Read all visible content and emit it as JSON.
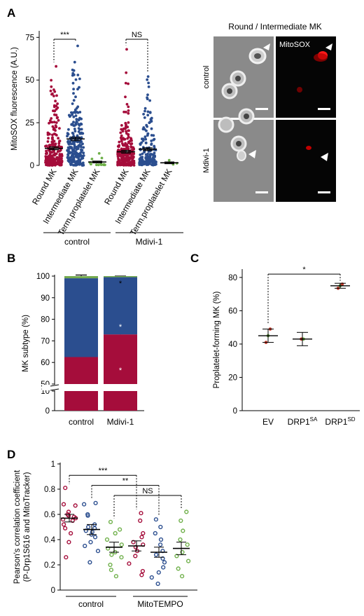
{
  "colors": {
    "round": "#a50d3b",
    "intermediate": "#2b4e8f",
    "terminal": "#6fb04a",
    "bar_green": "#74aa4e",
    "dot_red": "#c0392b",
    "dot_green": "#6fb04a",
    "micro_bg": "#3a3a3a"
  },
  "panels": {
    "A": {
      "label": "A",
      "micro_title": "Round / Intermediate MK",
      "micro_channel": "MitoSOX",
      "micro_rows": [
        "control",
        "Mdivi-1"
      ]
    },
    "B": {
      "label": "B"
    },
    "C": {
      "label": "C"
    },
    "D": {
      "label": "D"
    }
  },
  "chart_data": [
    {
      "id": "A",
      "type": "scatter",
      "ylabel": "MitoSOX fluorescence (A.U.)",
      "yticks": [
        0,
        25,
        50,
        75
      ],
      "ylim": [
        0,
        78
      ],
      "categories": [
        "Round MK",
        "Intermediate MK",
        "Term.proplatelet MK",
        "Round MK",
        "Intermediate MK",
        "Term.proplatelet MK"
      ],
      "groups": [
        "control",
        "Mdivi-1"
      ],
      "series": [
        {
          "category": "Round MK",
          "group": "control",
          "color_key": "round",
          "mean": 10,
          "sem": 0.8,
          "n": 230,
          "max": 58
        },
        {
          "category": "Intermediate MK",
          "group": "control",
          "color_key": "intermediate",
          "mean": 15.5,
          "sem": 1.0,
          "n": 230,
          "max": 70
        },
        {
          "category": "Term.proplatelet MK",
          "group": "control",
          "color_key": "terminal",
          "mean": 2,
          "sem": 0.5,
          "n": 14,
          "max": 7
        },
        {
          "category": "Round MK",
          "group": "Mdivi-1",
          "color_key": "round",
          "mean": 8,
          "sem": 0.8,
          "n": 230,
          "max": 68
        },
        {
          "category": "Intermediate MK",
          "group": "Mdivi-1",
          "color_key": "intermediate",
          "mean": 9.5,
          "sem": 0.8,
          "n": 170,
          "max": 52
        },
        {
          "category": "Term.proplatelet MK",
          "group": "Mdivi-1",
          "color_key": "terminal",
          "mean": 1.5,
          "sem": 0.5,
          "n": 3,
          "max": 3
        }
      ],
      "comparisons": [
        {
          "from": 0,
          "to": 1,
          "label": "***"
        },
        {
          "from": 3,
          "to": 4,
          "label": "NS"
        }
      ]
    },
    {
      "id": "B",
      "type": "bar",
      "stacked": true,
      "ylabel": "MK subtype (%)",
      "yticks_upper": [
        50,
        60,
        70,
        80,
        90,
        100
      ],
      "yticks_lower": [
        0,
        10
      ],
      "categories": [
        "control",
        "Mdivi-1"
      ],
      "series": [
        {
          "name": "",
          "color_key": "round",
          "values": [
            62.5,
            73
          ],
          "err": [
            3,
            0.3
          ]
        },
        {
          "name": "",
          "color_key": "intermediate",
          "values": [
            36.5,
            26.5
          ],
          "err": [
            1.5,
            0.5
          ]
        },
        {
          "name": "",
          "color_key": "bar_green",
          "values": [
            1,
            0.5
          ],
          "err": [
            0,
            0
          ]
        }
      ],
      "annotations": [
        "*",
        "*",
        "*"
      ]
    },
    {
      "id": "C",
      "type": "scatter",
      "ylabel": "Proplatelet-forming MK (%)",
      "yticks": [
        0,
        20,
        40,
        60,
        80
      ],
      "ylim": [
        0,
        85
      ],
      "categories": [
        {
          "base": "EV",
          "sup": ""
        },
        {
          "base": "DRP1",
          "sup": "SA"
        },
        {
          "base": "DRP1",
          "sup": "SD"
        }
      ],
      "series": [
        {
          "mean": 45,
          "sem": 4,
          "points": [
            41,
            45,
            49
          ]
        },
        {
          "mean": 43,
          "sem": 4,
          "points": [
            43,
            43
          ]
        },
        {
          "mean": 75,
          "sem": 1.5,
          "points": [
            73.5,
            75,
            76
          ]
        }
      ],
      "comparisons": [
        {
          "from": 0,
          "to": 2,
          "label": "*"
        }
      ]
    },
    {
      "id": "D",
      "type": "scatter",
      "ylabel_lines": [
        "Pearson's correlation coefficient",
        "(P-Drp1S616 and MitoTracker)"
      ],
      "yticks": [
        0,
        0.2,
        0.4,
        0.6,
        0.8,
        1
      ],
      "ylim": [
        0,
        1.0
      ],
      "groups": [
        "control",
        "MitoTEMPO"
      ],
      "series": [
        {
          "group": "control",
          "color_key": "round",
          "mean": 0.57,
          "sem": 0.03,
          "points": [
            0.81,
            0.68,
            0.67,
            0.62,
            0.6,
            0.59,
            0.58,
            0.57,
            0.56,
            0.55,
            0.52,
            0.49,
            0.45,
            0.38,
            0.26
          ]
        },
        {
          "group": "control",
          "color_key": "intermediate",
          "mean": 0.48,
          "sem": 0.04,
          "points": [
            0.69,
            0.68,
            0.6,
            0.59,
            0.52,
            0.5,
            0.49,
            0.47,
            0.46,
            0.44,
            0.42,
            0.38,
            0.35,
            0.31,
            0.22
          ]
        },
        {
          "group": "control",
          "color_key": "terminal",
          "mean": 0.34,
          "sem": 0.04,
          "points": [
            0.54,
            0.48,
            0.45,
            0.4,
            0.36,
            0.33,
            0.3,
            0.28,
            0.26,
            0.2,
            0.16,
            0.11
          ]
        },
        {
          "group": "MitoTEMPO",
          "color_key": "round",
          "mean": 0.35,
          "sem": 0.04,
          "points": [
            0.61,
            0.55,
            0.45,
            0.42,
            0.38,
            0.36,
            0.34,
            0.31,
            0.27,
            0.21,
            0.15,
            0.12
          ]
        },
        {
          "group": "MitoTEMPO",
          "color_key": "intermediate",
          "mean": 0.3,
          "sem": 0.04,
          "points": [
            0.56,
            0.5,
            0.45,
            0.4,
            0.36,
            0.31,
            0.28,
            0.25,
            0.22,
            0.18,
            0.14,
            0.1,
            0.05
          ]
        },
        {
          "group": "MitoTEMPO",
          "color_key": "terminal",
          "mean": 0.33,
          "sem": 0.05,
          "points": [
            0.62,
            0.55,
            0.47,
            0.4,
            0.36,
            0.3,
            0.27,
            0.23,
            0.17,
            0.11
          ]
        }
      ],
      "comparisons": [
        {
          "from": 0,
          "to": 3,
          "label": "***"
        },
        {
          "from": 1,
          "to": 4,
          "label": "**"
        },
        {
          "from": 2,
          "to": 5,
          "label": "NS"
        }
      ]
    }
  ]
}
